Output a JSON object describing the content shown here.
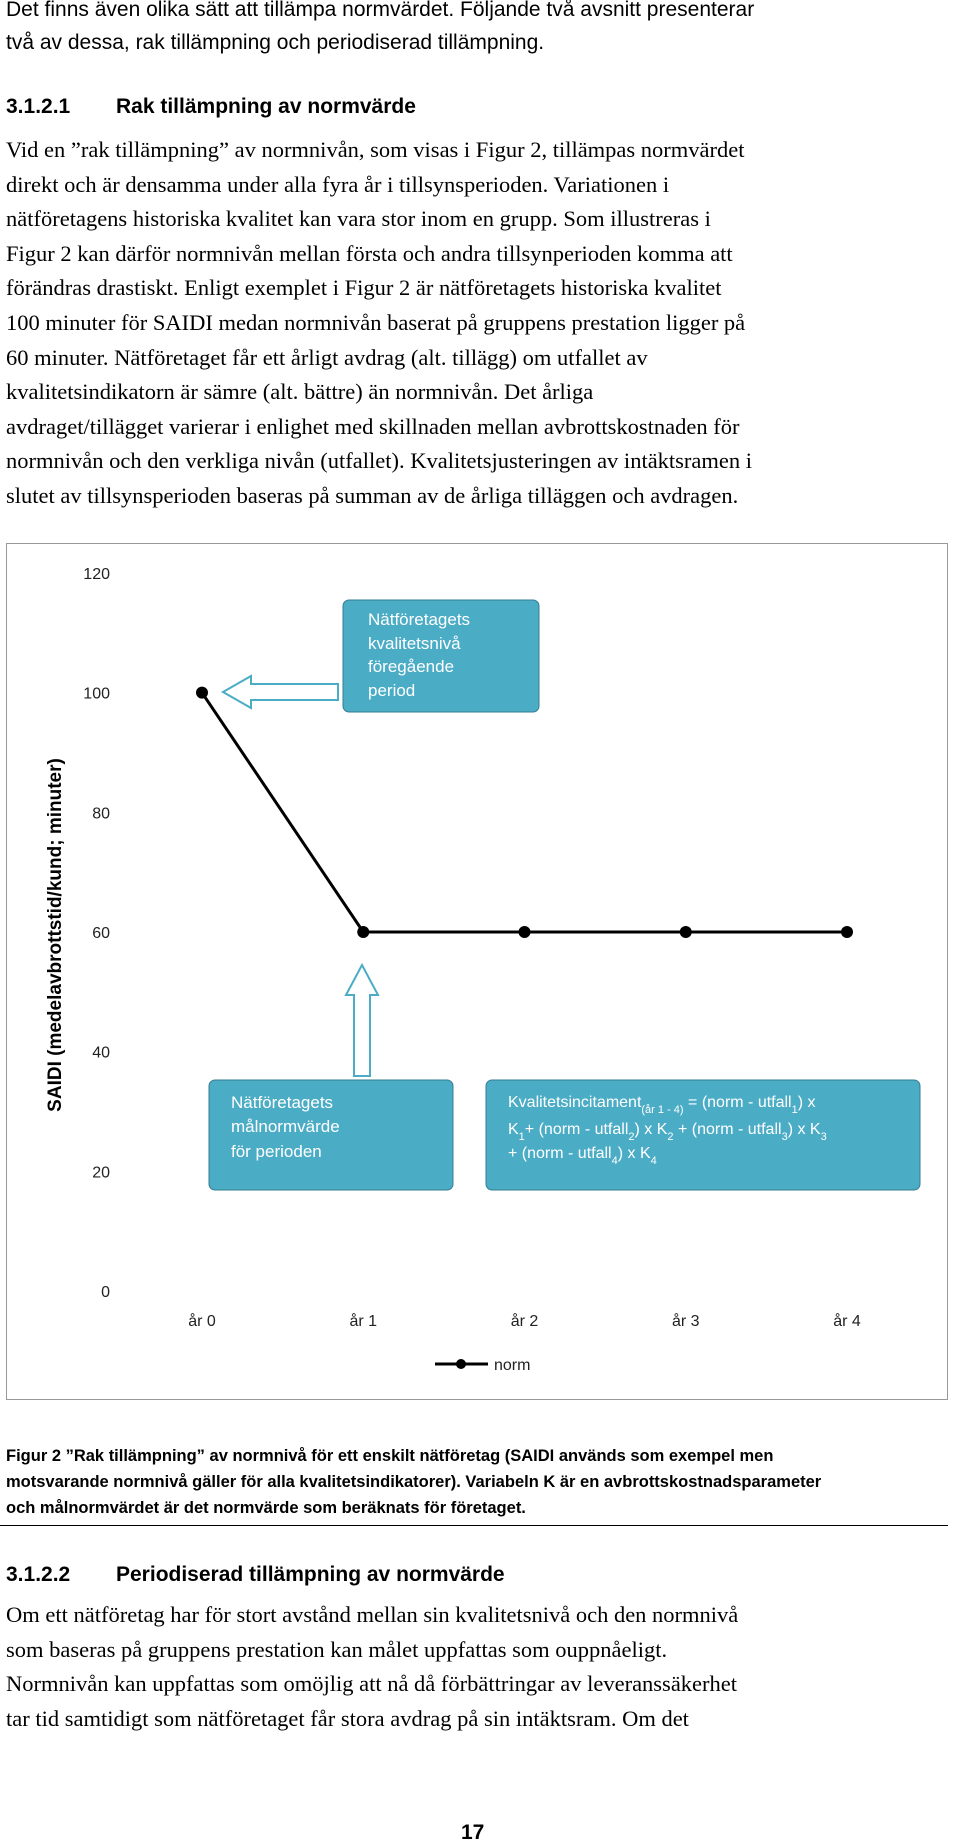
{
  "intro": {
    "lines": [
      "Det finns även olika sätt att tillämpa normvärdet. Följande två avsnitt presenterar",
      "två av dessa, rak tillämpning och periodiserad tillämpning."
    ]
  },
  "section1": {
    "number": "3.1.2.1",
    "title": "Rak tillämpning av normvärde",
    "lines": [
      "Vid en ”rak tillämpning” av normnivån, som visas i Figur 2, tillämpas normvärdet",
      "direkt och är densamma under alla fyra år i tillsynsperioden. Variationen i",
      "nätföretagens historiska kvalitet kan vara stor inom en grupp. Som illustreras i",
      "Figur 2 kan därför normnivån mellan första och andra tillsynperioden komma att",
      "förändras drastiskt. Enligt exemplet i Figur 2 är nätföretagets historiska kvalitet",
      "100 minuter för SAIDI medan normnivån baserat på gruppens prestation ligger på",
      "60 minuter. Nätföretaget får ett årligt avdrag (alt. tillägg) om utfallet av",
      "kvalitetsindikatorn är sämre (alt. bättre) än normnivån. Det årliga",
      "avdraget/tillägget varierar i enlighet med skillnaden mellan avbrottskostnaden för",
      "normnivån och den verkliga nivån (utfallet). Kvalitetsjusteringen av intäktsramen i",
      "slutet av tillsynsperioden baseras på summan av de årliga tilläggen och avdragen."
    ]
  },
  "chart_data": {
    "type": "line",
    "y_label": "SAIDI (medelavbrottstid/kund; minuter)",
    "categories": [
      "år 0",
      "år 1",
      "år 2",
      "år 3",
      "år 4"
    ],
    "series": [
      {
        "name": "norm",
        "color": "#000000",
        "values": [
          100,
          60,
          60,
          60,
          60
        ]
      }
    ],
    "ylim": [
      0,
      120
    ],
    "yticks": [
      0,
      20,
      40,
      60,
      80,
      100,
      120
    ],
    "grid": false,
    "legend": "bottom",
    "annotations": [
      {
        "lines": [
          "Nätföretagets",
          "kvalitetsnivå",
          "föregående",
          "period"
        ]
      },
      {
        "lines": [
          "Nätföretagets",
          "målnormvärde",
          "för perioden"
        ]
      }
    ],
    "formula_lines": [
      [
        {
          "text": "Kvalitetsincitament"
        },
        {
          "sub": "(år 1 - 4)"
        },
        {
          "text": " = (norm - utfall"
        },
        {
          "sub": "1"
        },
        {
          "text": ") x"
        }
      ],
      [
        {
          "text": "K"
        },
        {
          "sub": "1"
        },
        {
          "text": "+ (norm - utfall"
        },
        {
          "sub": "2"
        },
        {
          "text": ") x K"
        },
        {
          "sub": "2"
        },
        {
          "text": " + (norm - utfall"
        },
        {
          "sub": "3"
        },
        {
          "text": ") x K"
        },
        {
          "sub": "3"
        }
      ],
      [
        {
          "text": "+ (norm - utfall"
        },
        {
          "sub": "4"
        },
        {
          "text": ") x K"
        },
        {
          "sub": "4"
        }
      ]
    ]
  },
  "caption": {
    "lines": [
      "Figur 2 ”Rak tillämpning” av normnivå för ett enskilt nätföretag (SAIDI används som exempel men",
      "motsvarande normnivå gäller för alla kvalitetsindikatorer).  Variabeln K är en avbrottskostnadsparameter",
      "och målnormvärdet är det normvärde som beräknats för företaget."
    ]
  },
  "section2": {
    "number": "3.1.2.2",
    "title": "Periodiserad tillämpning av normvärde",
    "lines": [
      "Om ett nätföretag har för stort avstånd mellan sin kvalitetsnivå och den normnivå",
      "som baseras på gruppens prestation kan målet uppfattas som ouppnåeligt.",
      "Normnivån kan uppfattas som omöjlig att nå då förbättringar av leveranssäkerhet",
      "tar tid samtidigt som nätföretaget får stora avdrag på sin intäktsram. Om det"
    ]
  },
  "page_number": "17"
}
